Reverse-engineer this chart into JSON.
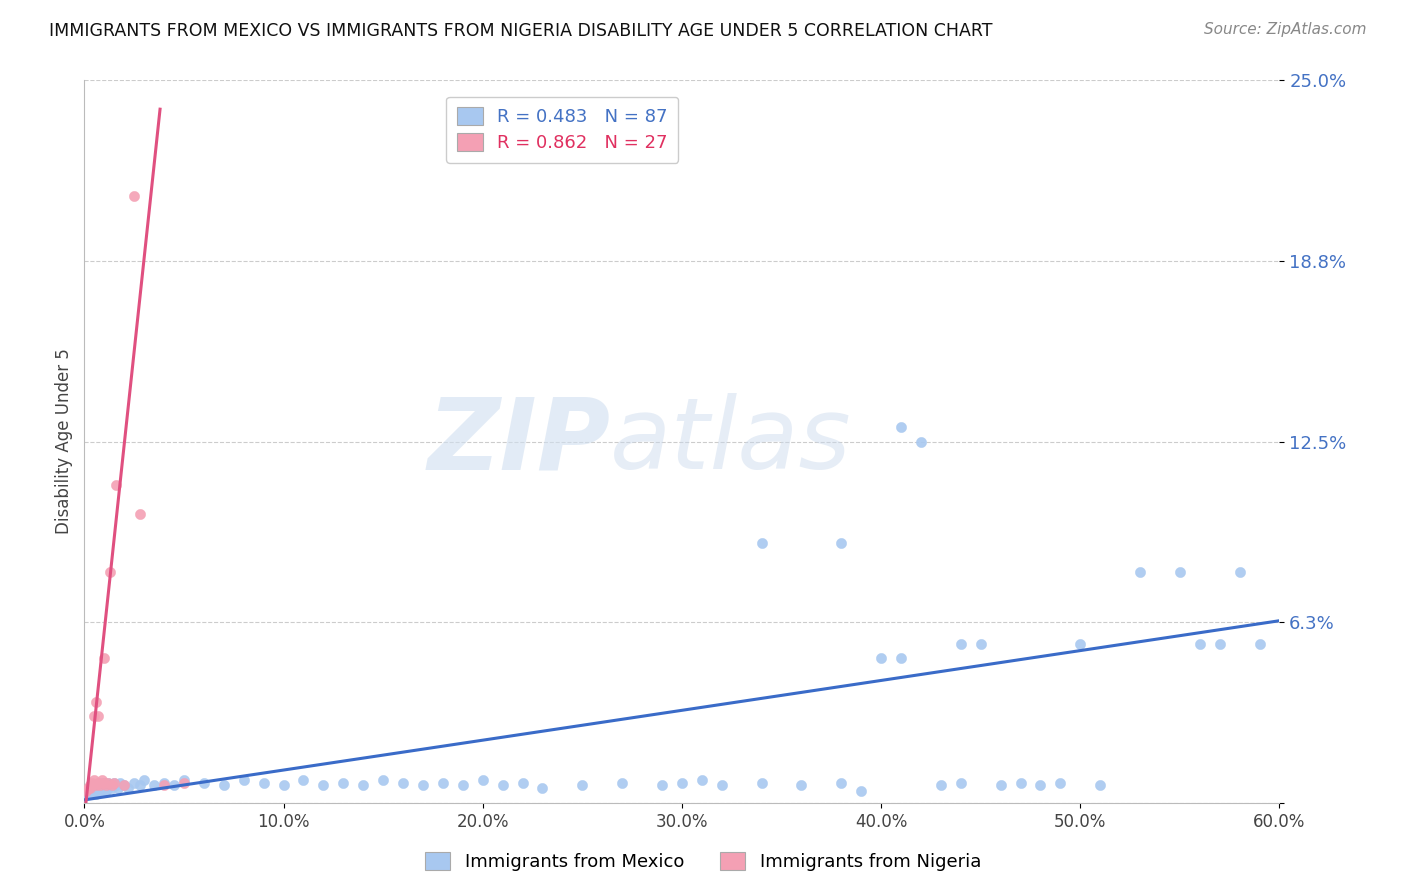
{
  "title": "IMMIGRANTS FROM MEXICO VS IMMIGRANTS FROM NIGERIA DISABILITY AGE UNDER 5 CORRELATION CHART",
  "source": "Source: ZipAtlas.com",
  "ylabel": "Disability Age Under 5",
  "legend_label_mexico": "Immigrants from Mexico",
  "legend_label_nigeria": "Immigrants from Nigeria",
  "R_mexico": 0.483,
  "N_mexico": 87,
  "R_nigeria": 0.862,
  "N_nigeria": 27,
  "color_mexico": "#a8c8f0",
  "color_nigeria": "#f4a0b4",
  "line_color_mexico": "#3a6bc8",
  "line_color_nigeria": "#e05080",
  "xlim": [
    0.0,
    0.6
  ],
  "ylim": [
    0.0,
    0.25
  ],
  "yticks": [
    0.0,
    0.0625,
    0.125,
    0.1875,
    0.25
  ],
  "ytick_labels": [
    "",
    "6.3%",
    "12.5%",
    "18.8%",
    "25.0%"
  ],
  "xticks": [
    0.0,
    0.1,
    0.2,
    0.3,
    0.4,
    0.5,
    0.6
  ],
  "xtick_labels": [
    "0.0%",
    "10.0%",
    "20.0%",
    "30.0%",
    "40.0%",
    "50.0%",
    "60.0%"
  ],
  "watermark_zip": "ZIP",
  "watermark_atlas": "atlas",
  "mexico_x": [
    0.001,
    0.002,
    0.003,
    0.004,
    0.004,
    0.005,
    0.005,
    0.006,
    0.006,
    0.007,
    0.007,
    0.007,
    0.008,
    0.008,
    0.009,
    0.009,
    0.01,
    0.01,
    0.011,
    0.011,
    0.012,
    0.012,
    0.013,
    0.014,
    0.015,
    0.016,
    0.017,
    0.018,
    0.02,
    0.022,
    0.025,
    0.028,
    0.03,
    0.035,
    0.04,
    0.045,
    0.05,
    0.06,
    0.07,
    0.08,
    0.09,
    0.1,
    0.11,
    0.12,
    0.13,
    0.14,
    0.15,
    0.16,
    0.17,
    0.18,
    0.19,
    0.2,
    0.21,
    0.22,
    0.23,
    0.25,
    0.27,
    0.29,
    0.3,
    0.31,
    0.32,
    0.34,
    0.36,
    0.38,
    0.39,
    0.4,
    0.41,
    0.42,
    0.43,
    0.44,
    0.45,
    0.46,
    0.47,
    0.48,
    0.49,
    0.5,
    0.51,
    0.53,
    0.55,
    0.56,
    0.57,
    0.58,
    0.59,
    0.34,
    0.38,
    0.41,
    0.44
  ],
  "mexico_y": [
    0.003,
    0.004,
    0.003,
    0.005,
    0.004,
    0.006,
    0.004,
    0.005,
    0.003,
    0.006,
    0.005,
    0.004,
    0.007,
    0.005,
    0.006,
    0.004,
    0.007,
    0.005,
    0.006,
    0.004,
    0.005,
    0.007,
    0.006,
    0.005,
    0.007,
    0.006,
    0.005,
    0.007,
    0.006,
    0.005,
    0.007,
    0.006,
    0.008,
    0.006,
    0.007,
    0.006,
    0.008,
    0.007,
    0.006,
    0.008,
    0.007,
    0.006,
    0.008,
    0.006,
    0.007,
    0.006,
    0.008,
    0.007,
    0.006,
    0.007,
    0.006,
    0.008,
    0.006,
    0.007,
    0.005,
    0.006,
    0.007,
    0.006,
    0.007,
    0.008,
    0.006,
    0.007,
    0.006,
    0.007,
    0.004,
    0.05,
    0.13,
    0.125,
    0.006,
    0.007,
    0.055,
    0.006,
    0.007,
    0.006,
    0.007,
    0.055,
    0.006,
    0.08,
    0.08,
    0.055,
    0.055,
    0.08,
    0.055,
    0.09,
    0.09,
    0.05,
    0.055
  ],
  "nigeria_x": [
    0.001,
    0.002,
    0.003,
    0.003,
    0.004,
    0.004,
    0.005,
    0.005,
    0.006,
    0.006,
    0.007,
    0.007,
    0.008,
    0.009,
    0.01,
    0.01,
    0.011,
    0.012,
    0.013,
    0.014,
    0.015,
    0.016,
    0.02,
    0.025,
    0.028,
    0.04,
    0.05
  ],
  "nigeria_y": [
    0.004,
    0.005,
    0.006,
    0.005,
    0.007,
    0.006,
    0.008,
    0.03,
    0.006,
    0.035,
    0.007,
    0.03,
    0.006,
    0.008,
    0.05,
    0.007,
    0.006,
    0.007,
    0.08,
    0.006,
    0.007,
    0.11,
    0.006,
    0.21,
    0.1,
    0.006,
    0.007
  ],
  "nigeria_line_x": [
    0.0,
    0.038
  ],
  "nigeria_line_y_start": -0.005,
  "nigeria_line_y_end": 0.24
}
